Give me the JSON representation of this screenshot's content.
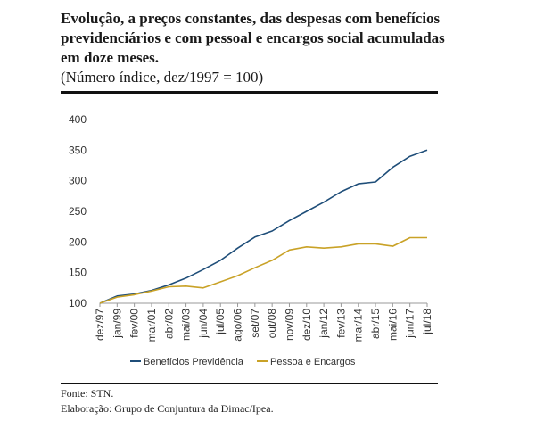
{
  "header": {
    "title": "Evolução, a preços constantes, das despesas com benefícios previdenciários e com pessoal e encargos social acumuladas em doze meses.",
    "subtitle": "(Número índice, dez/1997 = 100)"
  },
  "footer": {
    "source": "Fonte: STN.",
    "elaboration": "Elaboração: Grupo de Conjuntura da Dimac/Ipea."
  },
  "chart_data": {
    "type": "line",
    "title": "Evolução, a preços constantes, das despesas com benefícios previdenciários e com pessoal e encargos social acumuladas em doze meses.",
    "ylabel": "",
    "xlabel": "",
    "ylim": [
      100,
      400
    ],
    "yticks": [
      100,
      150,
      200,
      250,
      300,
      350,
      400
    ],
    "grid": false,
    "legend_position": "bottom",
    "categories": [
      "dez/97",
      "jan/99",
      "fev/00",
      "mar/01",
      "abr/02",
      "mai/03",
      "jun/04",
      "jul/05",
      "ago/06",
      "set/07",
      "out/08",
      "nov/09",
      "dez/10",
      "jan/12",
      "fev/13",
      "mar/14",
      "abr/15",
      "mai/16",
      "jun/17",
      "jul/18"
    ],
    "colors": {
      "series_1": "#1f4e79",
      "series_2": "#c9a227"
    },
    "series": [
      {
        "name": "Benefícios Previdência",
        "values": [
          100,
          112,
          115,
          121,
          130,
          141,
          155,
          170,
          190,
          208,
          218,
          235,
          250,
          265,
          282,
          295,
          298,
          322,
          340,
          350
        ]
      },
      {
        "name": "Pessoa e Encargos",
        "values": [
          100,
          110,
          114,
          120,
          127,
          128,
          125,
          135,
          145,
          158,
          170,
          187,
          192,
          190,
          192,
          197,
          197,
          193,
          207,
          207
        ]
      }
    ]
  }
}
